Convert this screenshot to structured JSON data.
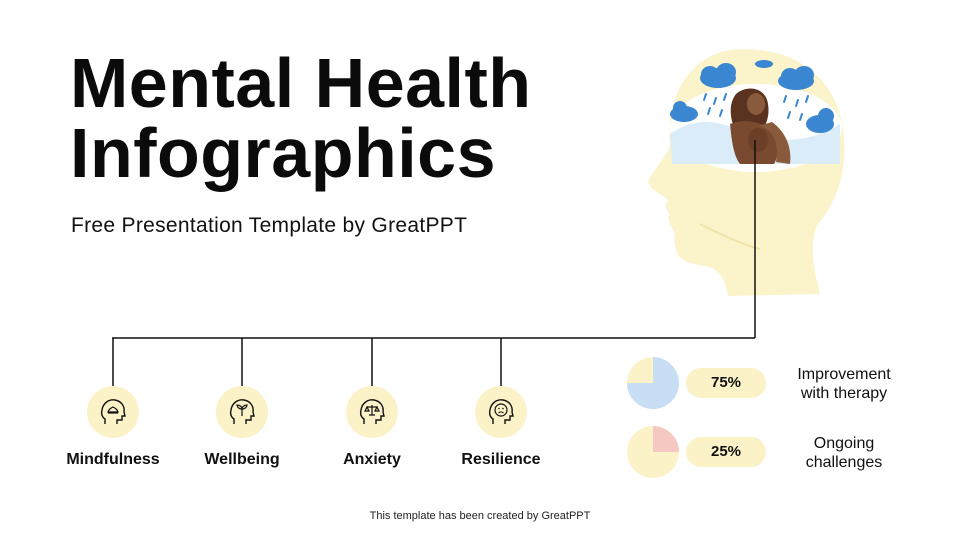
{
  "title": {
    "line1": "Mental Health",
    "line2": "Infographics"
  },
  "subtitle": "Free Presentation Template by GreatPPT",
  "categories": [
    {
      "label": "Mindfulness",
      "icon": "head-lotus-icon"
    },
    {
      "label": "Wellbeing",
      "icon": "head-plant-icon"
    },
    {
      "label": "Anxiety",
      "icon": "head-balance-icon"
    },
    {
      "label": "Resilience",
      "icon": "head-sad-face-icon"
    }
  ],
  "stats": [
    {
      "value": "75%",
      "fraction": 0.75,
      "label_line1": "Improvement",
      "label_line2": "with therapy",
      "pie_color": "#c8def5",
      "accent": "#fbf2c8"
    },
    {
      "value": "25%",
      "fraction": 0.25,
      "label_line1": "Ongoing",
      "label_line2": "challenges",
      "pie_color": "#f5c9c1",
      "accent": "#fbf2c8"
    }
  ],
  "footer": "This template has been created by GreatPPT",
  "colors": {
    "accent_cream": "#fbf2c8",
    "head_fill": "#fbf3c9",
    "cloud_blue": "#3b86d0",
    "line": "#111111"
  }
}
